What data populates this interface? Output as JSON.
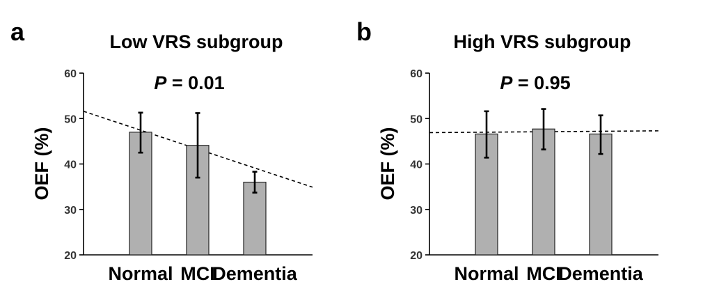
{
  "chart_data": [
    {
      "panel": "a",
      "type": "bar",
      "title": "Low VRS subgroup",
      "p_label": "P",
      "p_value": "= 0.01",
      "ylabel": "OEF (%)",
      "xlabel": "",
      "ylim": [
        20,
        60
      ],
      "yticks": [
        20,
        30,
        40,
        50,
        60
      ],
      "categories": [
        "Normal",
        "MCI",
        "Dementia"
      ],
      "values": [
        47.0,
        44.1,
        36.0
      ],
      "err_low": [
        42.5,
        37.0,
        33.7
      ],
      "err_high": [
        51.3,
        51.2,
        38.3
      ],
      "trend": [
        51.6,
        34.9
      ]
    },
    {
      "panel": "b",
      "type": "bar",
      "title": "High VRS subgroup",
      "p_label": "P",
      "p_value": "= 0.95",
      "ylabel": "OEF (%)",
      "xlabel": "",
      "ylim": [
        20,
        60
      ],
      "yticks": [
        20,
        30,
        40,
        50,
        60
      ],
      "categories": [
        "Normal",
        "MCI",
        "Dementia"
      ],
      "values": [
        46.6,
        47.7,
        46.6
      ],
      "err_low": [
        41.4,
        43.2,
        42.2
      ],
      "err_high": [
        51.6,
        52.1,
        50.7
      ],
      "trend": [
        46.9,
        47.3
      ]
    }
  ]
}
